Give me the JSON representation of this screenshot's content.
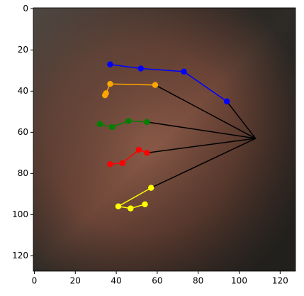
{
  "chart_data": {
    "type": "keypoints",
    "xlim": [
      -0.5,
      127.5
    ],
    "ylim": [
      127.5,
      -0.5
    ],
    "xticks": [
      0,
      20,
      40,
      60,
      80,
      100,
      120
    ],
    "yticks": [
      0,
      20,
      40,
      60,
      80,
      100,
      120
    ],
    "root": {
      "x": 108,
      "y": 63,
      "color": "#000000"
    },
    "series": [
      {
        "color": "#0000ff",
        "x": [
          94,
          73,
          52,
          37
        ],
        "values": [
          45,
          30.5,
          29,
          27
        ]
      },
      {
        "color": "#ffa500",
        "x": [
          59,
          37,
          35,
          34.5
        ],
        "values": [
          37,
          36.5,
          41,
          42
        ]
      },
      {
        "color": "#008000",
        "x": [
          55,
          46,
          38,
          32
        ],
        "values": [
          55,
          54.5,
          57.5,
          56
        ]
      },
      {
        "color": "#ff0000",
        "x": [
          55,
          51,
          43,
          37
        ],
        "values": [
          70,
          68.5,
          75,
          75.5
        ]
      },
      {
        "color": "#ffff00",
        "x": [
          57,
          41,
          47,
          54
        ],
        "values": [
          87,
          96,
          97,
          95
        ]
      }
    ]
  }
}
